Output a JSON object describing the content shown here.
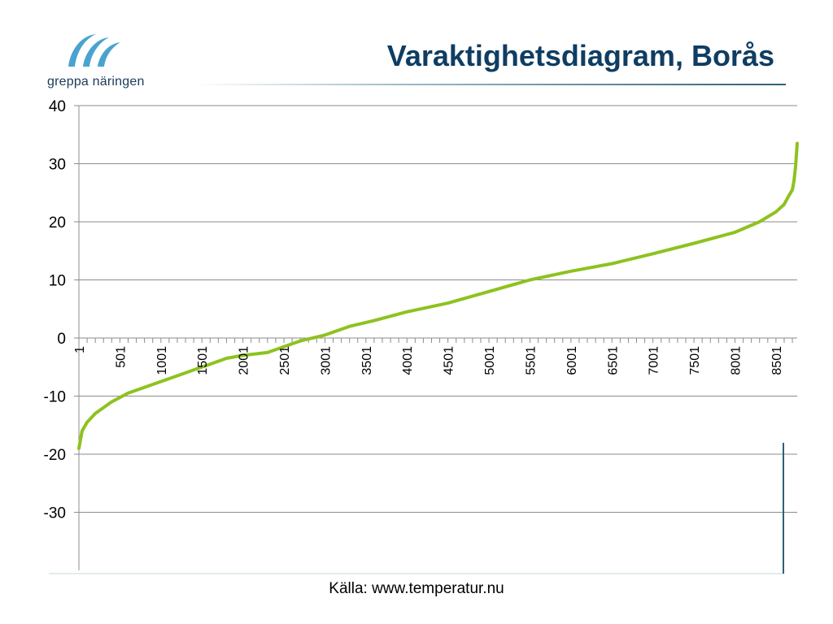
{
  "slide": {
    "title": "Varaktighetsdiagram, Borås",
    "logo_text": "greppa näringen",
    "source": "Källa: www.temperatur.nu"
  },
  "colors": {
    "title": "#0f3d63",
    "series": "#8ec21f",
    "grid": "#8c8c8c",
    "logo_blue": "#4aa3cf",
    "logo_dark": "#1a3a5a",
    "accent_rule": "#2d6273"
  },
  "chart_data": {
    "type": "line",
    "title": "",
    "xlabel": "",
    "ylabel": "",
    "x_tick_labels": [
      "1",
      "501",
      "1001",
      "1501",
      "2001",
      "2501",
      "3001",
      "3501",
      "4001",
      "4501",
      "5001",
      "5501",
      "6001",
      "6501",
      "7001",
      "7501",
      "8001",
      "8501"
    ],
    "y_tick_labels": [
      "40",
      "30",
      "20",
      "10",
      "0",
      "-10",
      "-20",
      "-30"
    ],
    "ylim": [
      -40,
      40
    ],
    "xlim": [
      1,
      8760
    ],
    "grid": true,
    "legend": "none",
    "series": [
      {
        "name": "",
        "x": [
          1,
          40,
          100,
          200,
          400,
          600,
          800,
          1000,
          1200,
          1500,
          1800,
          2000,
          2300,
          2500,
          2700,
          3000,
          3300,
          3600,
          4000,
          4500,
          5000,
          5500,
          6000,
          6500,
          7000,
          7500,
          8000,
          8300,
          8500,
          8600,
          8650,
          8700,
          8720,
          8740,
          8760
        ],
        "y": [
          -19,
          -16,
          -14.5,
          -13,
          -11,
          -9.5,
          -8.5,
          -7.5,
          -6.5,
          -5,
          -3.5,
          -3,
          -2.5,
          -1.5,
          -0.5,
          0.5,
          2,
          3,
          4.5,
          6,
          8,
          10,
          11.5,
          12.8,
          14.5,
          16.3,
          18.2,
          20,
          21.7,
          23,
          24.3,
          25.5,
          27,
          29.5,
          33.5
        ]
      }
    ]
  }
}
